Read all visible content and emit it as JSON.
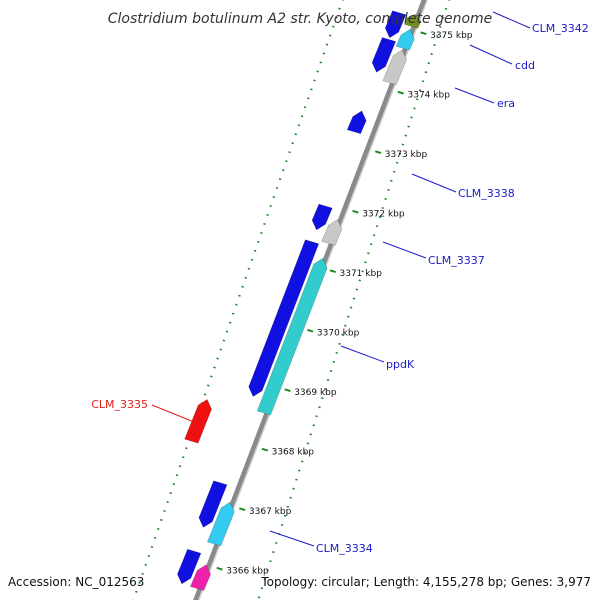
{
  "title": "Clostridium botulinum A2 str. Kyoto, complete genome",
  "footer": {
    "accession": "Accession: NC_012563",
    "summary": "Topology: circular; Length: 4,155,278 bp; Genes: 3,977"
  },
  "colors": {
    "backbone": "#8a8a8a",
    "backbone_highlight": "#cfcfcf",
    "tick": "#1b8a1b",
    "gene_blue": "#1010e0",
    "gene_cyan": "#33cccc",
    "gene_lightblue": "#33ccf0",
    "gene_gray": "#c8c8c8",
    "gene_red": "#ee1111",
    "gene_magenta": "#ee22aa",
    "gene_olive": "#6f8f22",
    "label_line_blue": "#1a1ac8",
    "label_line_red": "#e0201a"
  },
  "ticks": [
    {
      "kbp": 3366,
      "label": "3366 kbp"
    },
    {
      "kbp": 3367,
      "label": "3367 kbp"
    },
    {
      "kbp": 3368,
      "label": "3368 kbp"
    },
    {
      "kbp": 3369,
      "label": "3369 kbp"
    },
    {
      "kbp": 3370,
      "label": "3370 kbp"
    },
    {
      "kbp": 3371,
      "label": "3371 kbp"
    },
    {
      "kbp": 3372,
      "label": "3372 kbp"
    },
    {
      "kbp": 3373,
      "label": "3373 kbp"
    },
    {
      "kbp": 3374,
      "label": "3374 kbp"
    },
    {
      "kbp": 3375,
      "label": "3375 kbp"
    }
  ],
  "gene_labels": [
    {
      "name": "CLM_3342",
      "color": "blue"
    },
    {
      "name": "cdd",
      "color": "blue"
    },
    {
      "name": "era",
      "color": "blue"
    },
    {
      "name": "CLM_3338",
      "color": "blue"
    },
    {
      "name": "CLM_3337",
      "color": "blue"
    },
    {
      "name": "ppdK",
      "color": "blue"
    },
    {
      "name": "CLM_3335",
      "color": "red"
    },
    {
      "name": "CLM_3334",
      "color": "blue"
    }
  ],
  "genes": [
    {
      "track": "inner",
      "start": 3374.2,
      "end": 3374.75,
      "color": "gene_blue",
      "strand": "-"
    },
    {
      "track": "outer",
      "start": 3374.1,
      "end": 3374.65,
      "color": "gene_gray",
      "strand": "+"
    },
    {
      "track": "inner",
      "start": 3374.78,
      "end": 3375.2,
      "color": "gene_blue",
      "strand": "-"
    },
    {
      "track": "outer",
      "start": 3374.68,
      "end": 3375.0,
      "color": "gene_lightblue",
      "strand": "+"
    },
    {
      "track": "outer",
      "start": 3375.05,
      "end": 3375.25,
      "color": "gene_olive",
      "strand": "+"
    },
    {
      "track": "inner",
      "start": 3373.2,
      "end": 3373.55,
      "color": "gene_blue",
      "strand": "+"
    },
    {
      "track": "inner",
      "start": 3371.55,
      "end": 3371.95,
      "color": "gene_blue",
      "strand": "-"
    },
    {
      "track": "outer",
      "start": 3371.4,
      "end": 3371.8,
      "color": "gene_gray",
      "strand": "+"
    },
    {
      "track": "inner",
      "start": 3368.75,
      "end": 3371.35,
      "color": "gene_blue",
      "strand": "-"
    },
    {
      "track": "outer",
      "start": 3368.55,
      "end": 3371.15,
      "color": "gene_cyan",
      "strand": "+"
    },
    {
      "track": "far",
      "start": 3367.8,
      "end": 3368.5,
      "color": "gene_red",
      "strand": "+"
    },
    {
      "track": "inner",
      "start": 3366.55,
      "end": 3367.3,
      "color": "gene_blue",
      "strand": "-"
    },
    {
      "track": "outer",
      "start": 3366.35,
      "end": 3367.05,
      "color": "gene_lightblue",
      "strand": "+"
    },
    {
      "track": "inner",
      "start": 3365.6,
      "end": 3366.15,
      "color": "gene_blue",
      "strand": "-"
    },
    {
      "track": "outer",
      "start": 3365.6,
      "end": 3366.0,
      "color": "gene_magenta",
      "strand": "+"
    }
  ]
}
